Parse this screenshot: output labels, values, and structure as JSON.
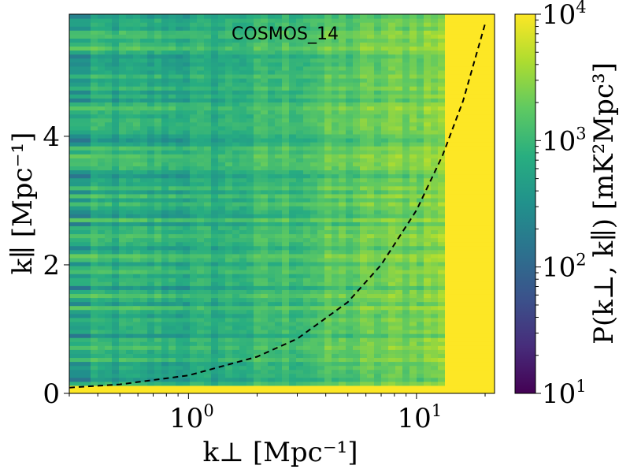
{
  "chart_data": {
    "type": "heatmap",
    "title": "COSMOS_14",
    "xlabel": "k⊥ [Mpc⁻¹]",
    "ylabel": "k∥ [Mpc⁻¹]",
    "colorbar_label": "P(k⊥, k∥) [mK²Mpc³]",
    "x_scale": "log",
    "xlim": [
      0.3,
      22
    ],
    "ylim": [
      0,
      5.9
    ],
    "x_ticks": [
      {
        "value": 1,
        "base": "10",
        "exp": "0"
      },
      {
        "value": 10,
        "base": "10",
        "exp": "1"
      }
    ],
    "y_ticks": [
      {
        "value": 0,
        "label": "0"
      },
      {
        "value": 2,
        "label": "2"
      },
      {
        "value": 4,
        "label": "4"
      }
    ],
    "colorbar": {
      "scale": "log",
      "range": [
        10,
        10000
      ],
      "colormap": "viridis",
      "ticks": [
        {
          "value": 10,
          "base": "10",
          "exp": "1"
        },
        {
          "value": 100,
          "base": "10",
          "exp": "2"
        },
        {
          "value": 1000,
          "base": "10",
          "exp": "3"
        },
        {
          "value": 10000,
          "base": "10",
          "exp": "4"
        }
      ]
    },
    "wedge_line": {
      "style": "dashed",
      "color": "#000000",
      "points": [
        [
          0.3,
          0.09
        ],
        [
          0.5,
          0.14
        ],
        [
          1.0,
          0.28
        ],
        [
          2.0,
          0.57
        ],
        [
          3.0,
          0.85
        ],
        [
          5.0,
          1.42
        ],
        [
          7.0,
          2.0
        ],
        [
          10.0,
          2.85
        ],
        [
          13.0,
          3.7
        ],
        [
          16.0,
          4.55
        ],
        [
          20.0,
          5.75
        ]
      ]
    },
    "field_description": {
      "low_k_parallel_band_power": 10000,
      "high_k_perp_power": 10000,
      "k_perp_saturation_start": 13,
      "main_region_power_range": [
        700,
        4000
      ]
    }
  }
}
